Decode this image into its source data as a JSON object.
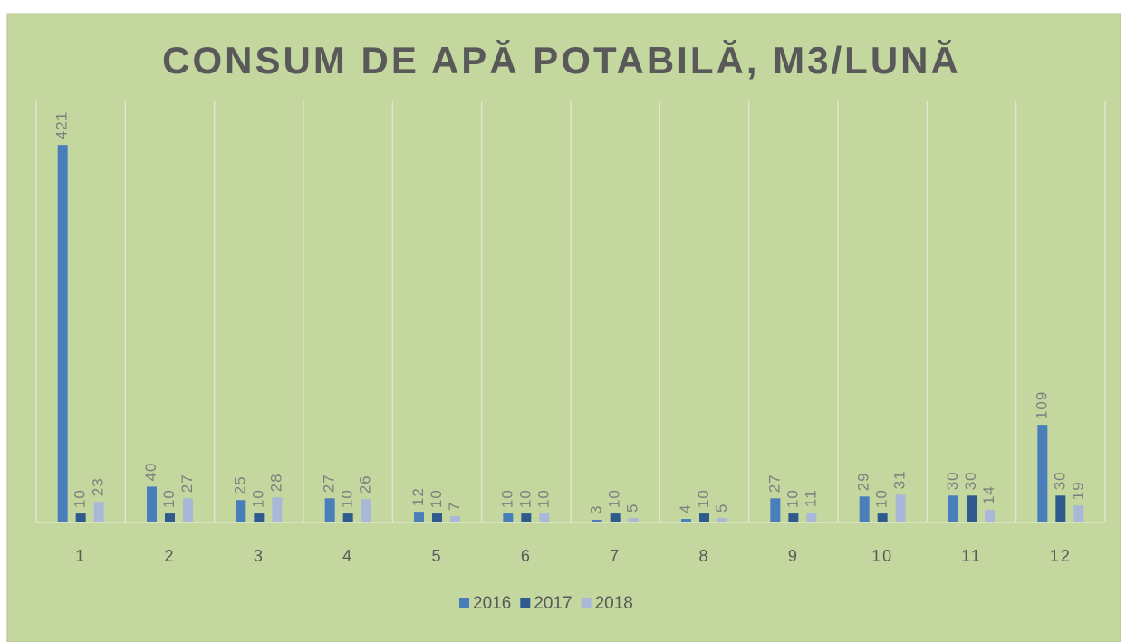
{
  "chart_data": {
    "type": "bar",
    "title": "CONSUM DE APĂ POTABILĂ, M3/LUNĂ",
    "categories": [
      "1",
      "2",
      "3",
      "4",
      "5",
      "6",
      "7",
      "8",
      "9",
      "10",
      "11",
      "12"
    ],
    "series": [
      {
        "name": "2016",
        "color": "#4a7ebb",
        "values": [
          421,
          40,
          25,
          27,
          12,
          10,
          3,
          4,
          27,
          29,
          30,
          109
        ]
      },
      {
        "name": "2017",
        "color": "#2e5a8e",
        "values": [
          10,
          10,
          10,
          10,
          10,
          10,
          10,
          10,
          10,
          10,
          30,
          30
        ]
      },
      {
        "name": "2018",
        "color": "#a9b8d8",
        "values": [
          23,
          27,
          28,
          26,
          7,
          10,
          5,
          5,
          11,
          31,
          14,
          19
        ]
      }
    ],
    "ylim": [
      0,
      450
    ],
    "legend": "bottom"
  }
}
